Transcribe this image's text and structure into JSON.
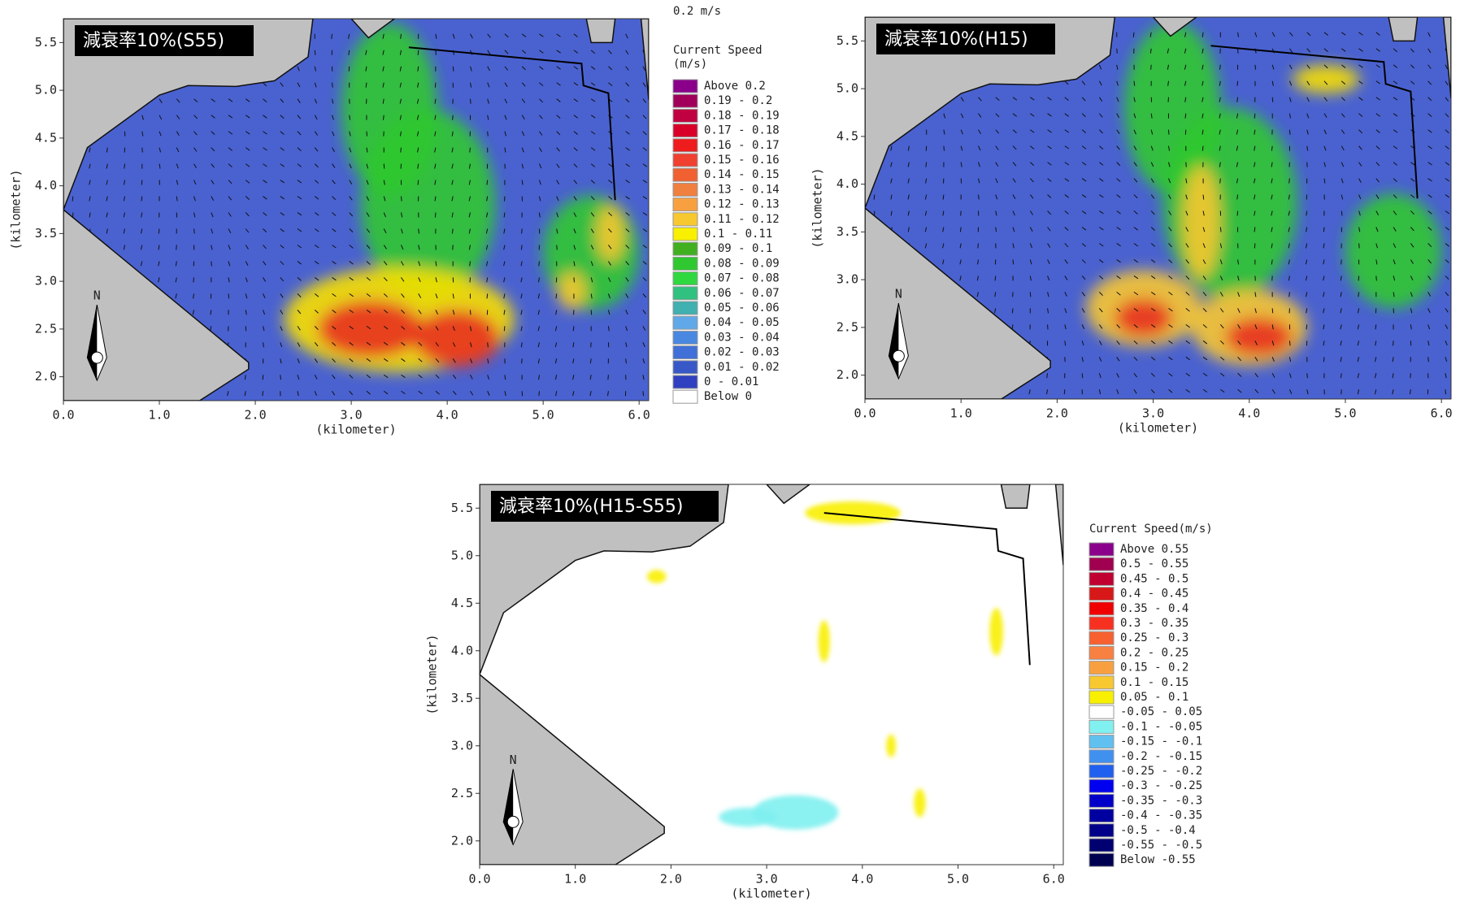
{
  "scale_label": "0.2 m/s",
  "north_label": "N",
  "panels": [
    {
      "title": "減衰率10%(S55)",
      "xlabel": "(kilometer)",
      "ylabel": "(kilometer)",
      "xlim": [
        0,
        6.1
      ],
      "ylim": [
        1.75,
        5.75
      ],
      "xticks": [
        {
          "value": 0,
          "label": "0.0"
        },
        {
          "value": 1,
          "label": "1.0"
        },
        {
          "value": 2,
          "label": "2.0"
        },
        {
          "value": 3,
          "label": "3.0"
        },
        {
          "value": 4,
          "label": "4.0"
        },
        {
          "value": 5,
          "label": "5.0"
        },
        {
          "value": 6,
          "label": "6.0"
        }
      ],
      "yticks": [
        {
          "value": 2,
          "label": "2.0"
        },
        {
          "value": 2.5,
          "label": "2.5"
        },
        {
          "value": 3,
          "label": "3.0"
        },
        {
          "value": 3.5,
          "label": "3.5"
        },
        {
          "value": 4,
          "label": "4.0"
        },
        {
          "value": 4.5,
          "label": "4.5"
        },
        {
          "value": 5,
          "label": "5.0"
        },
        {
          "value": 5.5,
          "label": "5.5"
        }
      ]
    },
    {
      "title": "減衰率10%(H15)",
      "xlabel": "(kilometer)",
      "ylabel": "(kilometer)",
      "xlim": [
        0,
        6.1
      ],
      "ylim": [
        1.75,
        5.75
      ],
      "xticks": [
        {
          "value": 0,
          "label": "0.0"
        },
        {
          "value": 1,
          "label": "1.0"
        },
        {
          "value": 2,
          "label": "2.0"
        },
        {
          "value": 3,
          "label": "3.0"
        },
        {
          "value": 4,
          "label": "4.0"
        },
        {
          "value": 5,
          "label": "5.0"
        },
        {
          "value": 6,
          "label": "6.0"
        }
      ],
      "yticks": [
        {
          "value": 2,
          "label": "2.0"
        },
        {
          "value": 2.5,
          "label": "2.5"
        },
        {
          "value": 3,
          "label": "3.0"
        },
        {
          "value": 3.5,
          "label": "3.5"
        },
        {
          "value": 4,
          "label": "4.0"
        },
        {
          "value": 4.5,
          "label": "4.5"
        },
        {
          "value": 5,
          "label": "5.0"
        },
        {
          "value": 5.5,
          "label": "5.5"
        }
      ]
    },
    {
      "title": "減衰率10%(H15-S55)",
      "xlabel": "(kilometer)",
      "ylabel": "(kilometer)",
      "xlim": [
        0,
        6.1
      ],
      "ylim": [
        1.75,
        5.75
      ],
      "xticks": [
        {
          "value": 0,
          "label": "0.0"
        },
        {
          "value": 1,
          "label": "1.0"
        },
        {
          "value": 2,
          "label": "2.0"
        },
        {
          "value": 3,
          "label": "3.0"
        },
        {
          "value": 4,
          "label": "4.0"
        },
        {
          "value": 5,
          "label": "5.0"
        },
        {
          "value": 6,
          "label": "6.0"
        }
      ],
      "yticks": [
        {
          "value": 2,
          "label": "2.0"
        },
        {
          "value": 2.5,
          "label": "2.5"
        },
        {
          "value": 3,
          "label": "3.0"
        },
        {
          "value": 3.5,
          "label": "3.5"
        },
        {
          "value": 4,
          "label": "4.0"
        },
        {
          "value": 4.5,
          "label": "4.5"
        },
        {
          "value": 5,
          "label": "5.0"
        },
        {
          "value": 5.5,
          "label": "5.5"
        }
      ]
    }
  ],
  "legends": [
    {
      "title": "Current Speed",
      "unit": "(m/s)",
      "items": [
        {
          "label": "Above   0.2",
          "color": "#8b008b"
        },
        {
          "label": "0.19 -  0.2",
          "color": "#a0005a"
        },
        {
          "label": "0.18 - 0.19",
          "color": "#c00040"
        },
        {
          "label": "0.17 - 0.18",
          "color": "#d80028"
        },
        {
          "label": "0.16 - 0.17",
          "color": "#ee1c1c"
        },
        {
          "label": "0.15 - 0.16",
          "color": "#f04030"
        },
        {
          "label": "0.14 - 0.15",
          "color": "#f06030"
        },
        {
          "label": "0.13 - 0.14",
          "color": "#f08040"
        },
        {
          "label": "0.12 - 0.13",
          "color": "#f8a040"
        },
        {
          "label": "0.11 - 0.12",
          "color": "#f8c830"
        },
        {
          "label": "0.1 - 0.11",
          "color": "#f8f000"
        },
        {
          "label": "0.09 -  0.1",
          "color": "#40b020"
        },
        {
          "label": "0.08 - 0.09",
          "color": "#30c830"
        },
        {
          "label": "0.07 - 0.08",
          "color": "#30d840"
        },
        {
          "label": "0.06 - 0.07",
          "color": "#30c080"
        },
        {
          "label": "0.05 - 0.06",
          "color": "#40b0b0"
        },
        {
          "label": "0.04 - 0.05",
          "color": "#60a8e8"
        },
        {
          "label": "0.03 - 0.04",
          "color": "#4888e0"
        },
        {
          "label": "0.02 - 0.03",
          "color": "#4070d8"
        },
        {
          "label": "0.01 - 0.02",
          "color": "#3858c8"
        },
        {
          "label": "0 - 0.01",
          "color": "#3040c0"
        },
        {
          "label": "Below      0",
          "color": "#ffffff"
        }
      ]
    },
    {
      "title": "Current Speed(m/s)",
      "items": [
        {
          "label": "Above   0.55",
          "color": "#8b008b"
        },
        {
          "label": "0.5 -  0.55",
          "color": "#a00050"
        },
        {
          "label": "0.45 -  0.5",
          "color": "#c00030"
        },
        {
          "label": "0.4 -  0.45",
          "color": "#d81818"
        },
        {
          "label": "0.35 -  0.4",
          "color": "#f00000"
        },
        {
          "label": "0.3 -  0.35",
          "color": "#f83020"
        },
        {
          "label": "0.25 -  0.3",
          "color": "#f86030"
        },
        {
          "label": "0.2 -  0.25",
          "color": "#f88040"
        },
        {
          "label": "0.15 -  0.2",
          "color": "#f8a040"
        },
        {
          "label": "0.1 -  0.15",
          "color": "#f8c830"
        },
        {
          "label": "0.05 -  0.1",
          "color": "#f8f000"
        },
        {
          "label": "-0.05 -  0.05",
          "color": "#ffffff"
        },
        {
          "label": "-0.1 - -0.05",
          "color": "#80f0f0"
        },
        {
          "label": "-0.15 -  -0.1",
          "color": "#60c0f0"
        },
        {
          "label": "-0.2 - -0.15",
          "color": "#4090f0"
        },
        {
          "label": "-0.25 -  -0.2",
          "color": "#2060f0"
        },
        {
          "label": "-0.3 - -0.25",
          "color": "#0000f0"
        },
        {
          "label": "-0.35 -  -0.3",
          "color": "#0000c8"
        },
        {
          "label": "-0.4 - -0.35",
          "color": "#0000a0"
        },
        {
          "label": "-0.5 -  -0.4",
          "color": "#000088"
        },
        {
          "label": "-0.55 -  -0.5",
          "color": "#000070"
        },
        {
          "label": "Below  -0.55",
          "color": "#000050"
        }
      ]
    }
  ]
}
